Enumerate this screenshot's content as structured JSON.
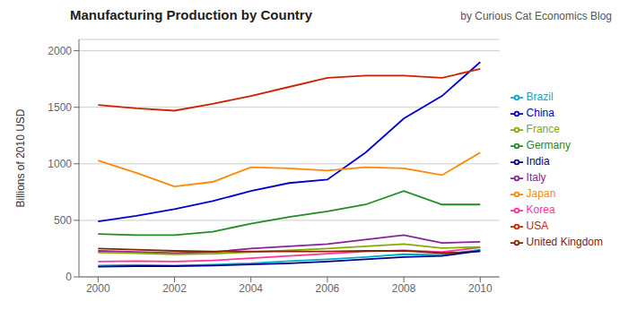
{
  "chart_data": {
    "type": "line",
    "title": "Manufacturing Production by Country",
    "subtitle": "by Curious Cat Economics Blog",
    "y_label": "Billions of 2010 USD",
    "x": [
      2000,
      2001,
      2002,
      2003,
      2004,
      2005,
      2006,
      2007,
      2008,
      2009,
      2010
    ],
    "series": [
      {
        "name": "China",
        "color": "#0000CC",
        "values": [
          490,
          540,
          600,
          670,
          760,
          830,
          860,
          1100,
          1400,
          1600,
          1900
        ]
      },
      {
        "name": "USA",
        "color": "#CC2200",
        "values": [
          1520,
          1490,
          1470,
          1530,
          1600,
          1680,
          1760,
          1780,
          1780,
          1760,
          1840
        ]
      },
      {
        "name": "Japan",
        "color": "#FF8800",
        "values": [
          1030,
          920,
          800,
          840,
          970,
          960,
          940,
          970,
          960,
          900,
          1100
        ]
      },
      {
        "name": "Germany",
        "color": "#228B22",
        "values": [
          380,
          370,
          370,
          400,
          470,
          530,
          580,
          640,
          760,
          640,
          640
        ]
      },
      {
        "name": "Italy",
        "color": "#882299",
        "values": [
          230,
          220,
          210,
          220,
          250,
          270,
          290,
          330,
          370,
          300,
          310
        ]
      },
      {
        "name": "Brazil",
        "color": "#00AACC",
        "values": [
          100,
          105,
          100,
          108,
          120,
          140,
          155,
          175,
          200,
          195,
          240
        ]
      },
      {
        "name": "Korea",
        "color": "#FF3399",
        "values": [
          135,
          140,
          135,
          145,
          165,
          185,
          205,
          225,
          235,
          220,
          260
        ]
      },
      {
        "name": "France",
        "color": "#88AA00",
        "values": [
          215,
          210,
          200,
          205,
          220,
          235,
          250,
          270,
          290,
          255,
          265
        ]
      },
      {
        "name": "United Kingdom",
        "color": "#882200",
        "values": [
          250,
          240,
          230,
          225,
          225,
          225,
          225,
          230,
          230,
          210,
          225
        ]
      },
      {
        "name": "India",
        "color": "#000088",
        "values": [
          90,
          95,
          95,
          100,
          110,
          120,
          135,
          155,
          175,
          185,
          230
        ]
      }
    ],
    "xlim": [
      1999.5,
      2010.5
    ],
    "ylim": [
      0,
      2100
    ],
    "xticks": [
      2000,
      2002,
      2004,
      2006,
      2008,
      2010
    ],
    "yticks": [
      0,
      500,
      1000,
      1500,
      2000
    ],
    "grid": true,
    "legend": "right"
  }
}
